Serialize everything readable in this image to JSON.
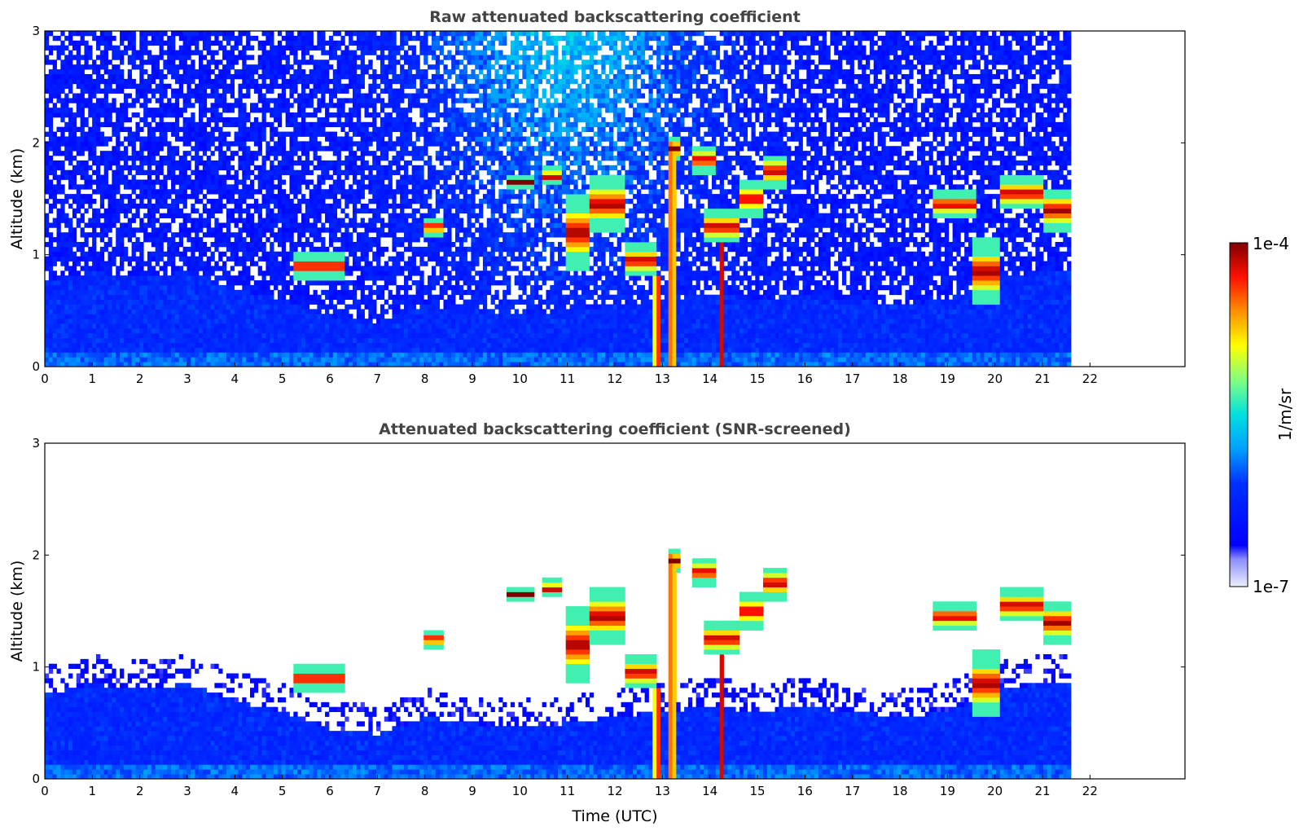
{
  "chart_data": [
    {
      "type": "heatmap",
      "title": "Raw attenuated backscattering coefficient",
      "xlabel": "",
      "ylabel": "Altitude (km)",
      "xlim": [
        0,
        24
      ],
      "ylim": [
        0,
        3
      ],
      "x_ticks": [
        "0",
        "1",
        "2",
        "3",
        "4",
        "5",
        "6",
        "7",
        "8",
        "9",
        "10",
        "11",
        "12",
        "13",
        "14",
        "15",
        "16",
        "17",
        "18",
        "19",
        "20",
        "21",
        "22"
      ],
      "y_ticks": [
        "0",
        "1",
        "2",
        "3"
      ],
      "data_end_time": 21.6,
      "noise_region": true,
      "boundary_layer_top_km": [
        [
          0,
          0.75
        ],
        [
          1,
          0.85
        ],
        [
          2,
          0.8
        ],
        [
          3,
          0.85
        ],
        [
          4,
          0.7
        ],
        [
          5,
          0.6
        ],
        [
          6,
          0.45
        ],
        [
          7,
          0.4
        ],
        [
          8,
          0.55
        ],
        [
          9,
          0.5
        ],
        [
          10,
          0.45
        ],
        [
          11,
          0.5
        ],
        [
          12,
          0.55
        ],
        [
          13,
          0.6
        ],
        [
          14,
          0.65
        ],
        [
          15,
          0.6
        ],
        [
          16,
          0.65
        ],
        [
          17,
          0.6
        ],
        [
          18,
          0.55
        ],
        [
          19,
          0.6
        ],
        [
          20,
          0.8
        ],
        [
          21,
          0.85
        ],
        [
          21.6,
          0.85
        ]
      ],
      "cloud_features": [
        {
          "t0": 5.2,
          "t1": 6.3,
          "alt_km": 0.9,
          "thick_km": 0.12
        },
        {
          "t0": 8.0,
          "t1": 8.4,
          "alt_km": 1.25,
          "thick_km": 0.08
        },
        {
          "t0": 9.7,
          "t1": 10.3,
          "alt_km": 1.65,
          "thick_km": 0.08
        },
        {
          "t0": 10.5,
          "t1": 10.9,
          "alt_km": 1.7,
          "thick_km": 0.08
        },
        {
          "t0": 11.0,
          "t1": 11.5,
          "alt_km": 1.2,
          "thick_km": 0.35
        },
        {
          "t0": 11.5,
          "t1": 12.2,
          "alt_km": 1.45,
          "thick_km": 0.25
        },
        {
          "t0": 12.2,
          "t1": 12.9,
          "alt_km": 0.95,
          "thick_km": 0.15
        },
        {
          "t0": 13.1,
          "t1": 13.4,
          "alt_km": 1.95,
          "thick_km": 0.12
        },
        {
          "t0": 13.6,
          "t1": 14.1,
          "alt_km": 1.85,
          "thick_km": 0.12
        },
        {
          "t0": 13.9,
          "t1": 14.6,
          "alt_km": 1.25,
          "thick_km": 0.15
        },
        {
          "t0": 14.6,
          "t1": 15.1,
          "alt_km": 1.5,
          "thick_km": 0.15
        },
        {
          "t0": 15.1,
          "t1": 15.6,
          "alt_km": 1.75,
          "thick_km": 0.15
        },
        {
          "t0": 18.7,
          "t1": 19.6,
          "alt_km": 1.45,
          "thick_km": 0.12
        },
        {
          "t0": 19.5,
          "t1": 20.1,
          "alt_km": 0.85,
          "thick_km": 0.3
        },
        {
          "t0": 20.1,
          "t1": 21.0,
          "alt_km": 1.55,
          "thick_km": 0.15
        },
        {
          "t0": 21.0,
          "t1": 21.6,
          "alt_km": 1.4,
          "thick_km": 0.2
        }
      ],
      "vertical_features": [
        {
          "t": 13.2,
          "alt_top_km": 2.0,
          "width_h": 0.15
        },
        {
          "t": 14.25,
          "alt_top_km": 1.1,
          "width_h": 0.1
        },
        {
          "t": 12.9,
          "alt_top_km": 0.8,
          "width_h": 0.15
        }
      ]
    },
    {
      "type": "heatmap",
      "title": "Attenuated backscattering coefficient (SNR-screened)",
      "xlabel": "Time (UTC)",
      "ylabel": "Altitude (km)",
      "xlim": [
        0,
        24
      ],
      "ylim": [
        0,
        3
      ],
      "x_ticks": [
        "0",
        "1",
        "2",
        "3",
        "4",
        "5",
        "6",
        "7",
        "8",
        "9",
        "10",
        "11",
        "12",
        "13",
        "14",
        "15",
        "16",
        "17",
        "18",
        "19",
        "20",
        "21",
        "22"
      ],
      "y_ticks": [
        "0",
        "1",
        "2",
        "3"
      ],
      "data_end_time": 21.6,
      "noise_region": false
    }
  ],
  "colorbar": {
    "label": "1/m/sr",
    "max_label": "1e-4",
    "min_label": "1e-7",
    "colormap": "jet"
  }
}
